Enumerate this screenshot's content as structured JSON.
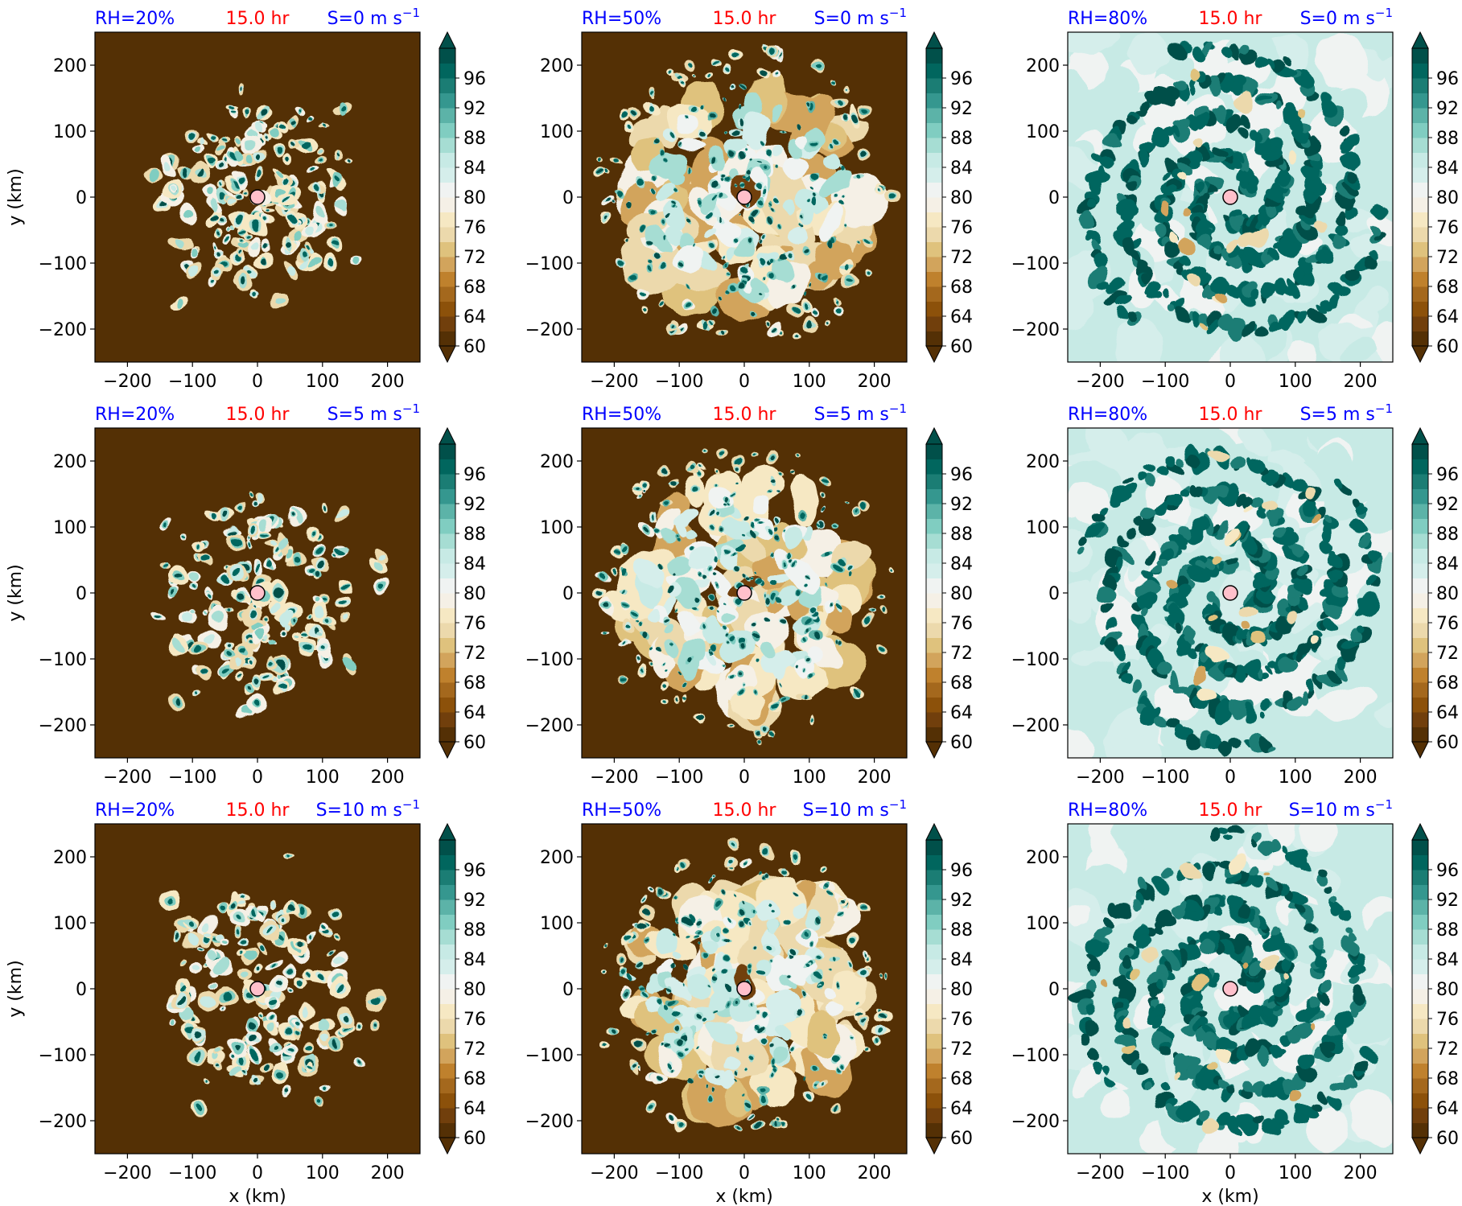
{
  "chart_data": {
    "type": "heatmap",
    "grid": {
      "rows": 3,
      "cols": 3
    },
    "column_rh": [
      "RH=20%",
      "RH=50%",
      "RH=80%"
    ],
    "row_shear": [
      {
        "prefix": "S=0 m s",
        "sup": "−1"
      },
      {
        "prefix": "S=5 m s",
        "sup": "−1"
      },
      {
        "prefix": "S=10 m s",
        "sup": "−1"
      }
    ],
    "time_label": "15.0 hr",
    "xlabel": "x (km)",
    "ylabel": "y (km)",
    "xlim": [
      -250,
      250
    ],
    "ylim": [
      -250,
      250
    ],
    "xticks": [
      -200,
      -100,
      0,
      100,
      200
    ],
    "yticks": [
      -200,
      -100,
      0,
      100,
      200
    ],
    "colorbar": {
      "levels": [
        60,
        62,
        64,
        66,
        68,
        70,
        72,
        74,
        76,
        78,
        80,
        82,
        84,
        86,
        88,
        90,
        92,
        94,
        96,
        98,
        100
      ],
      "tick_labels": [
        60,
        64,
        68,
        72,
        76,
        80,
        84,
        88,
        92,
        96
      ],
      "colors": [
        "#543005",
        "#713f0c",
        "#8c510a",
        "#a4681d",
        "#bf812d",
        "#d2a45c",
        "#dfc27d",
        "#ecd9ac",
        "#f6e8c3",
        "#f5f0e6",
        "#f0f3f2",
        "#d5eeeb",
        "#c7eae5",
        "#a6ddd3",
        "#80cdc1",
        "#5cb3a8",
        "#35978f",
        "#1b7d74",
        "#01665e",
        "#01504a"
      ],
      "extend": "both"
    },
    "center_marker_color": "#ffc0cb",
    "panels": [
      {
        "rh": 20,
        "shear": 0,
        "background_level": 60,
        "structure": "scattered isolated cells inside r~150 km on dry background"
      },
      {
        "rh": 50,
        "shear": 0,
        "background_level": 60,
        "structure": "moist disk r~200 km with scattered convective cells"
      },
      {
        "rh": 80,
        "shear": 0,
        "background_level": 84,
        "structure": "moist domain with spiral rainbands"
      },
      {
        "rh": 20,
        "shear": 5,
        "background_level": 60,
        "structure": "scattered isolated cells inside r~150 km on dry background"
      },
      {
        "rh": 50,
        "shear": 5,
        "background_level": 60,
        "structure": "moist disk r~200 km with scattered convective cells"
      },
      {
        "rh": 80,
        "shear": 5,
        "background_level": 84,
        "structure": "moist domain with spiral rainbands"
      },
      {
        "rh": 20,
        "shear": 10,
        "background_level": 60,
        "structure": "scattered isolated cells inside r~150 km on dry background"
      },
      {
        "rh": 50,
        "shear": 10,
        "background_level": 60,
        "structure": "moist disk r~200 km with scattered convective cells"
      },
      {
        "rh": 80,
        "shear": 10,
        "background_level": 84,
        "structure": "moist domain with spiral rainbands"
      }
    ]
  }
}
